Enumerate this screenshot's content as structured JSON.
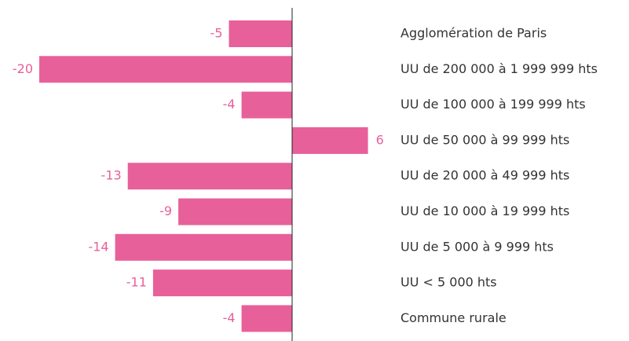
{
  "chart_data": {
    "type": "bar",
    "orientation": "horizontal",
    "categories": [
      "Agglomération de Paris",
      "UU de 200 000 à 1 999 999 hts",
      "UU de 100 000 à 199 999 hts",
      "UU de 50 000 à 99 999 hts",
      "UU de 20 000 à 49 999 hts",
      "UU de 10 000 à 19 999 hts",
      "UU de 5 000 à 9 999 hts",
      "UU < 5 000 hts",
      "Commune rurale"
    ],
    "values": [
      -5,
      -20,
      -4,
      6,
      -13,
      -9,
      -14,
      -11,
      -4
    ],
    "color": "#e8609a",
    "xlim": [
      -20,
      6
    ]
  }
}
